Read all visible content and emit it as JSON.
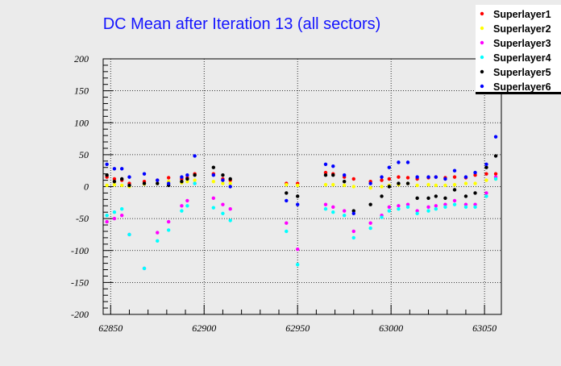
{
  "chart_data": {
    "type": "scatter",
    "title": "DC Mean after Iteration 13 (all sectors)",
    "xlabel": "",
    "ylabel": "",
    "xlim": [
      62846,
      63059
    ],
    "ylim": [
      -200,
      200
    ],
    "xticks": [
      62850,
      62900,
      62950,
      63000,
      63050
    ],
    "yticks": [
      -200,
      -150,
      -100,
      -50,
      0,
      50,
      100,
      150,
      200
    ],
    "grid": true,
    "legend_position": "top-right",
    "x": [
      62848,
      62852,
      62856,
      62860,
      62868,
      62875,
      62881,
      62888,
      62891,
      62895,
      62905,
      62910,
      62914,
      62944,
      62950,
      62965,
      62969,
      62975,
      62980,
      62989,
      62995,
      62999,
      63004,
      63009,
      63014,
      63020,
      63024,
      63029,
      63034,
      63040,
      63045,
      63051,
      63056
    ],
    "series": [
      {
        "name": "Superlayer1",
        "color": "#ff0000",
        "values": [
          15,
          12,
          10,
          5,
          8,
          10,
          14,
          12,
          14,
          20,
          20,
          12,
          10,
          5,
          5,
          22,
          20,
          15,
          12,
          8,
          10,
          12,
          15,
          14,
          12,
          14,
          15,
          14,
          15,
          14,
          18,
          20,
          20
        ]
      },
      {
        "name": "Superlayer2",
        "color": "#ffff00",
        "values": [
          2,
          3,
          2,
          0,
          4,
          5,
          8,
          6,
          8,
          10,
          8,
          5,
          5,
          3,
          2,
          3,
          3,
          2,
          0,
          -2,
          0,
          2,
          3,
          5,
          2,
          3,
          2,
          2,
          3,
          5,
          5,
          10,
          12
        ]
      },
      {
        "name": "Superlayer3",
        "color": "#ff00ff",
        "values": [
          -55,
          -50,
          -45,
          -75,
          -128,
          -72,
          -55,
          -30,
          -22,
          5,
          -18,
          -28,
          -35,
          -57,
          -98,
          -28,
          -32,
          -38,
          -70,
          -57,
          -45,
          -32,
          -30,
          -28,
          -38,
          -32,
          -30,
          -28,
          -22,
          -28,
          -28,
          -10,
          15
        ]
      },
      {
        "name": "Superlayer4",
        "color": "#00ffff",
        "values": [
          -45,
          -40,
          -35,
          -75,
          -128,
          -85,
          -68,
          -38,
          -30,
          5,
          -33,
          -42,
          -53,
          -70,
          -122,
          -35,
          -40,
          -45,
          -80,
          -65,
          -48,
          -38,
          -35,
          -32,
          -42,
          -38,
          -35,
          -32,
          -28,
          -32,
          -32,
          -15,
          12
        ]
      },
      {
        "name": "Superlayer5",
        "color": "#000000",
        "values": [
          18,
          8,
          12,
          2,
          5,
          5,
          2,
          8,
          12,
          18,
          30,
          18,
          12,
          -10,
          -15,
          18,
          18,
          8,
          -38,
          -28,
          -15,
          0,
          5,
          5,
          -18,
          -18,
          -15,
          -18,
          -5,
          -15,
          -10,
          30,
          48
        ]
      },
      {
        "name": "Superlayer6",
        "color": "#0000ff",
        "values": [
          35,
          28,
          28,
          15,
          20,
          10,
          5,
          15,
          18,
          48,
          18,
          10,
          0,
          -22,
          -28,
          35,
          32,
          18,
          -42,
          5,
          15,
          30,
          38,
          38,
          15,
          15,
          15,
          12,
          25,
          15,
          22,
          35,
          78
        ]
      }
    ]
  }
}
